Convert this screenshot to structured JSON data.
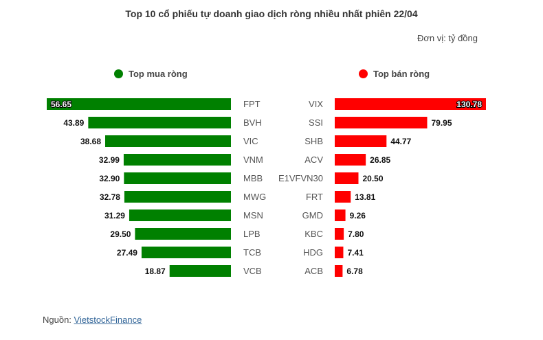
{
  "title": "Top 10 cổ phiếu tự doanh giao dịch ròng nhiều nhất phiên 22/04",
  "unit": "Đơn vị: tỷ đồng",
  "source": {
    "prefix": "Nguồn: ",
    "link_text": "VietstockFinance"
  },
  "colors": {
    "buy": "#008000",
    "sell": "#ff0000"
  },
  "chart_data": [
    {
      "type": "bar",
      "orientation": "horizontal",
      "legend": "Top mua ròng",
      "color": "#008000",
      "categories": [
        "FPT",
        "BVH",
        "VIC",
        "VNM",
        "MBB",
        "MWG",
        "MSN",
        "LPB",
        "TCB",
        "VCB"
      ],
      "values": [
        56.65,
        43.89,
        38.68,
        32.99,
        32.9,
        32.78,
        31.29,
        29.5,
        27.49,
        18.87
      ],
      "labels": [
        "56.65",
        "43.89",
        "38.68",
        "32.99",
        "32.90",
        "32.78",
        "31.29",
        "29.50",
        "27.49",
        "18.87"
      ]
    },
    {
      "type": "bar",
      "orientation": "horizontal",
      "legend": "Top bán ròng",
      "color": "#ff0000",
      "categories": [
        "VIX",
        "SSI",
        "SHB",
        "ACV",
        "E1VFVN30",
        "FRT",
        "GMD",
        "KBC",
        "HDG",
        "ACB"
      ],
      "values": [
        130.78,
        79.95,
        44.77,
        26.85,
        20.5,
        13.81,
        9.26,
        7.8,
        7.41,
        6.78
      ],
      "labels": [
        "130.78",
        "79.95",
        "44.77",
        "26.85",
        "20.50",
        "13.81",
        "9.26",
        "7.80",
        "7.41",
        "6.78"
      ]
    }
  ]
}
